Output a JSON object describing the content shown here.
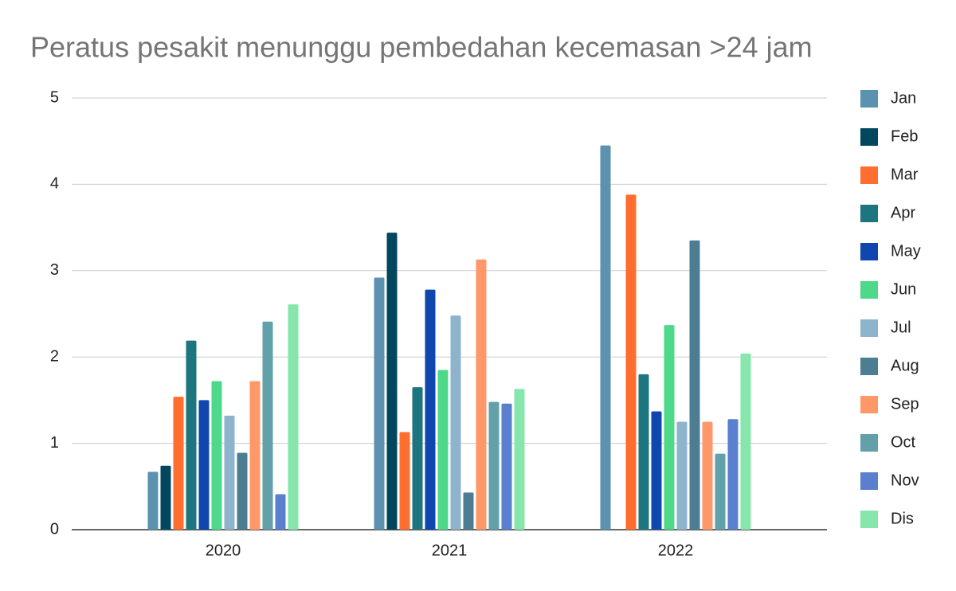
{
  "chart_data": {
    "type": "bar",
    "title": "Peratus pesakit menunggu pembedahan kecemasan >24 jam",
    "categories": [
      "2020",
      "2021",
      "2022"
    ],
    "series": [
      {
        "name": "Jan",
        "color": "#5a92b0",
        "values": [
          0.67,
          2.92,
          4.45
        ]
      },
      {
        "name": "Feb",
        "color": "#02475e",
        "values": [
          0.74,
          3.44,
          null
        ]
      },
      {
        "name": "Mar",
        "color": "#ff6d2f",
        "values": [
          1.54,
          1.13,
          3.88
        ]
      },
      {
        "name": "Apr",
        "color": "#1d7580",
        "values": [
          2.19,
          1.65,
          1.8
        ]
      },
      {
        "name": "May",
        "color": "#0f47af",
        "values": [
          1.5,
          2.78,
          1.37
        ]
      },
      {
        "name": "Jun",
        "color": "#4ed98a",
        "values": [
          1.72,
          1.85,
          2.37
        ]
      },
      {
        "name": "Jul",
        "color": "#8db4cc",
        "values": [
          1.32,
          2.48,
          1.25
        ]
      },
      {
        "name": "Aug",
        "color": "#4d7d93",
        "values": [
          0.89,
          0.43,
          3.35
        ]
      },
      {
        "name": "Sep",
        "color": "#ff9868",
        "values": [
          1.72,
          3.13,
          1.25
        ]
      },
      {
        "name": "Oct",
        "color": "#62a0aa",
        "values": [
          2.41,
          1.48,
          0.88
        ]
      },
      {
        "name": "Nov",
        "color": "#5a7fce",
        "values": [
          0.41,
          1.46,
          1.28
        ]
      },
      {
        "name": "Dis",
        "color": "#86e6ac",
        "values": [
          2.61,
          1.63,
          2.04
        ]
      }
    ],
    "ylim": [
      0,
      5
    ],
    "yticks": [
      0,
      1,
      2,
      3,
      4,
      5
    ],
    "grid": true,
    "legend": "right"
  }
}
